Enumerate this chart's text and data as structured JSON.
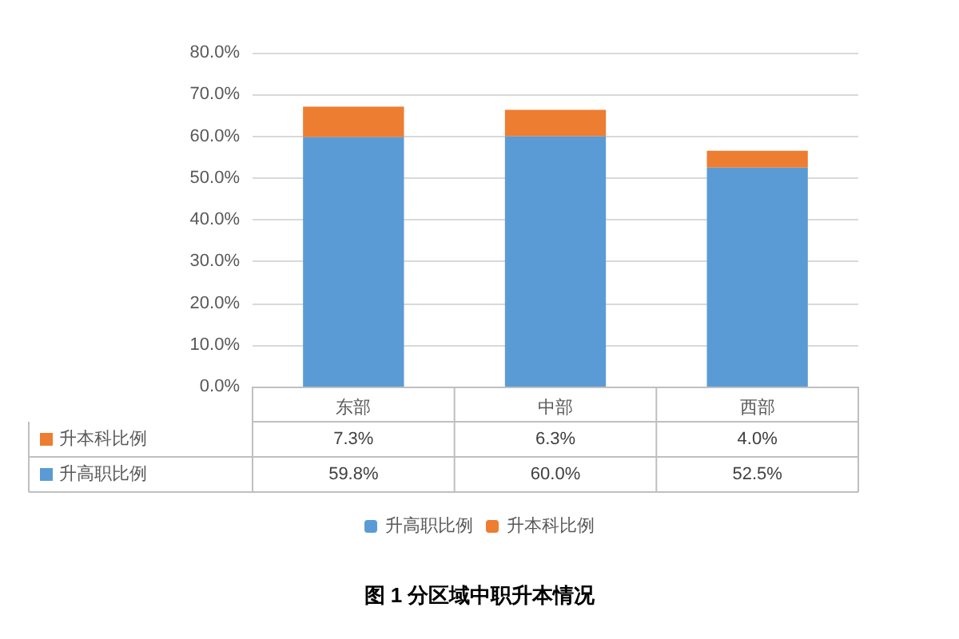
{
  "chart_data": {
    "type": "bar",
    "title": "图 1 分区域中职升本情况",
    "categories": [
      "东部",
      "中部",
      "西部"
    ],
    "stacked": true,
    "series": [
      {
        "name": "升高职比例",
        "color": "#5b9bd5",
        "values": [
          59.8,
          60.0,
          52.5
        ],
        "value_labels": [
          "59.8%",
          "60.0%",
          "52.5%"
        ]
      },
      {
        "name": "升本科比例",
        "color": "#ed7d31",
        "values": [
          7.3,
          6.3,
          4.0
        ],
        "value_labels": [
          "7.3%",
          "6.3%",
          "4.0%"
        ]
      }
    ],
    "ylim": [
      0,
      80
    ],
    "yticks": [
      {
        "value": 0,
        "label": "0.0%"
      },
      {
        "value": 10,
        "label": "10.0%"
      },
      {
        "value": 20,
        "label": "20.0%"
      },
      {
        "value": 30,
        "label": "30.0%"
      },
      {
        "value": 40,
        "label": "40.0%"
      },
      {
        "value": 50,
        "label": "50.0%"
      },
      {
        "value": 60,
        "label": "60.0%"
      },
      {
        "value": 70,
        "label": "70.0%"
      },
      {
        "value": 80,
        "label": "80.0%"
      }
    ],
    "grid": "y",
    "legend": "bottom"
  }
}
